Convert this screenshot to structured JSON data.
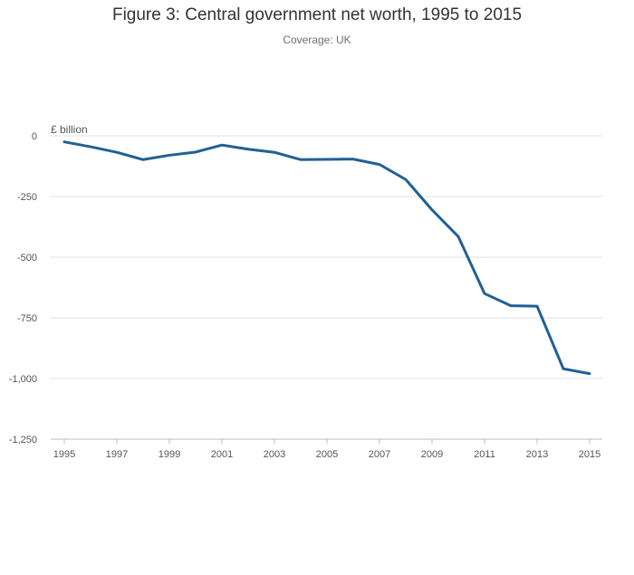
{
  "colors": {
    "line": "#206095",
    "grid": "#e0e0e0",
    "axis": "#bdbdbd",
    "text": "#333333",
    "muted": "#707070"
  },
  "chart_data": {
    "type": "line",
    "title": "Figure 3: Central government net worth, 1995 to 2015",
    "subtitle": "Coverage: UK",
    "ylabel": "£ billion",
    "xlabel": "",
    "ylim": [
      -1250,
      0
    ],
    "xlim": [
      1995,
      2015
    ],
    "grid": true,
    "legend": "none",
    "y_ticks": [
      0,
      -250,
      -500,
      -750,
      -1000,
      -1250
    ],
    "y_tick_labels": [
      "0",
      "-250",
      "-500",
      "-750",
      "-1,000",
      "-1,250"
    ],
    "x_ticks": [
      1995,
      1997,
      1999,
      2001,
      2003,
      2005,
      2007,
      2009,
      2011,
      2013,
      2015
    ],
    "x_tick_labels": [
      "1995",
      "1997",
      "1999",
      "2001",
      "2003",
      "2005",
      "2007",
      "2009",
      "2011",
      "2013",
      "2015"
    ],
    "series": [
      {
        "name": "Central government net worth",
        "x": [
          1995,
          1996,
          1997,
          1998,
          1999,
          2000,
          2001,
          2002,
          2003,
          2004,
          2005,
          2006,
          2007,
          2008,
          2009,
          2010,
          2011,
          2012,
          2013,
          2014,
          2015
        ],
        "values": [
          -25,
          -45,
          -68,
          -98,
          -80,
          -67,
          -38,
          -55,
          -68,
          -98,
          -97,
          -96,
          -118,
          -180,
          -305,
          -415,
          -650,
          -700,
          -702,
          -960,
          -980
        ]
      }
    ]
  }
}
